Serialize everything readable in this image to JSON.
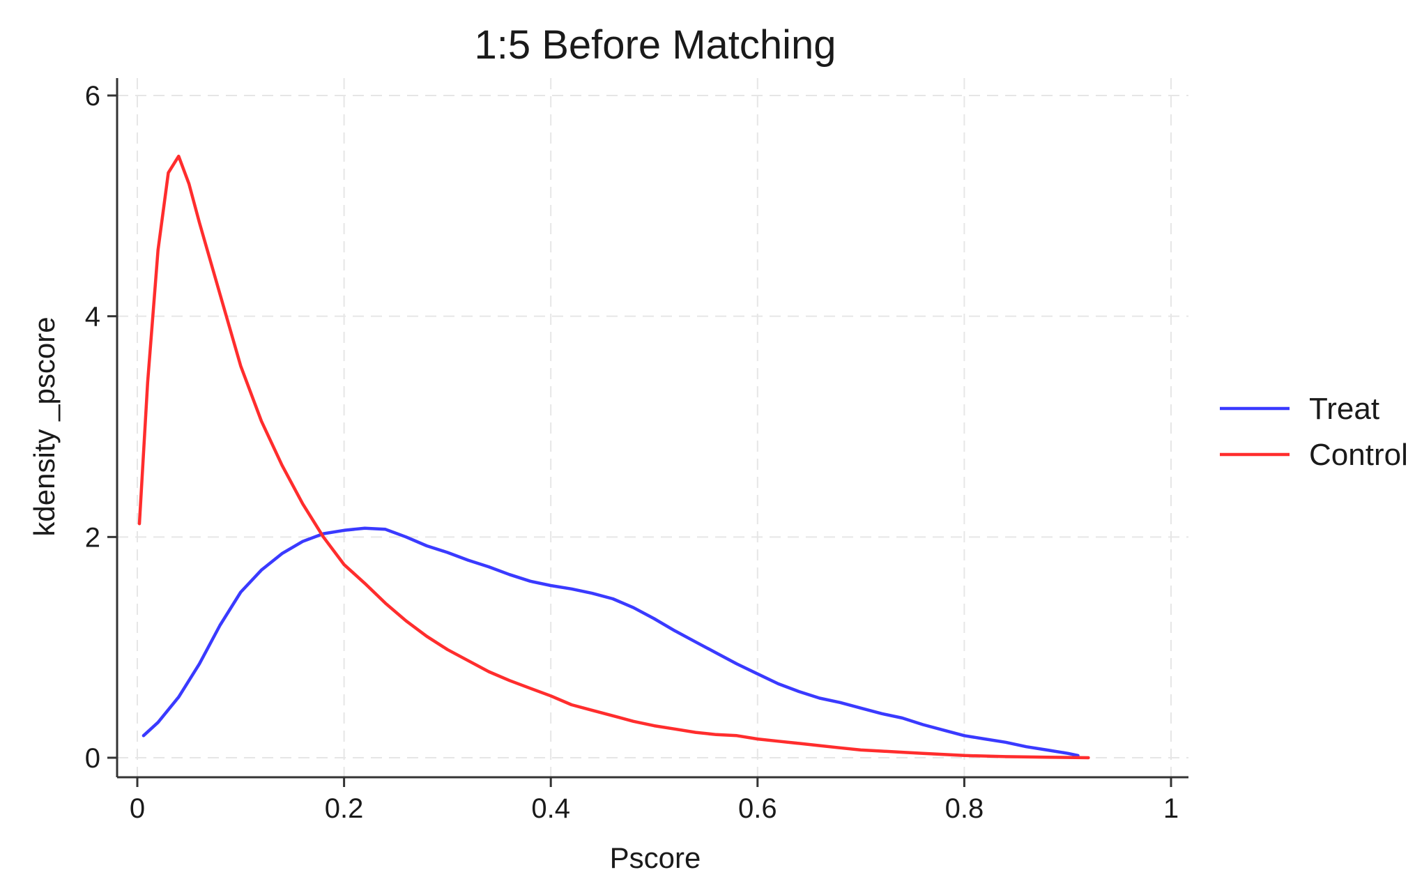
{
  "chart_data": {
    "type": "line",
    "title": "1:5 Before Matching",
    "xlabel": "Pscore",
    "ylabel": "kdensity _pscore",
    "xlim": [
      0,
      1
    ],
    "ylim": [
      0,
      6
    ],
    "x_ticks": [
      0,
      0.2,
      0.4,
      0.6,
      0.8,
      1
    ],
    "x_tick_labels": [
      "0",
      "0.2",
      "0.4",
      "0.6",
      "0.8",
      "1"
    ],
    "y_ticks": [
      0,
      2,
      4,
      6
    ],
    "y_tick_labels": [
      "0",
      "2",
      "4",
      "6"
    ],
    "grid": true,
    "legend_position": "right",
    "series": [
      {
        "name": "Treat",
        "color": "#3a3aff",
        "x": [
          0.006,
          0.02,
          0.04,
          0.06,
          0.08,
          0.1,
          0.12,
          0.14,
          0.16,
          0.18,
          0.2,
          0.22,
          0.24,
          0.26,
          0.28,
          0.3,
          0.32,
          0.34,
          0.36,
          0.38,
          0.4,
          0.42,
          0.44,
          0.46,
          0.48,
          0.5,
          0.52,
          0.54,
          0.56,
          0.58,
          0.6,
          0.62,
          0.64,
          0.66,
          0.68,
          0.7,
          0.72,
          0.74,
          0.76,
          0.78,
          0.8,
          0.82,
          0.84,
          0.86,
          0.88,
          0.9,
          0.91
        ],
        "y": [
          0.2,
          0.32,
          0.55,
          0.85,
          1.2,
          1.5,
          1.7,
          1.85,
          1.96,
          2.03,
          2.06,
          2.08,
          2.07,
          2.0,
          1.92,
          1.86,
          1.79,
          1.73,
          1.66,
          1.6,
          1.56,
          1.53,
          1.49,
          1.44,
          1.36,
          1.26,
          1.15,
          1.05,
          0.95,
          0.85,
          0.76,
          0.67,
          0.6,
          0.54,
          0.5,
          0.45,
          0.4,
          0.36,
          0.3,
          0.25,
          0.2,
          0.17,
          0.14,
          0.1,
          0.07,
          0.04,
          0.02
        ]
      },
      {
        "name": "Control",
        "color": "#ff2d2d",
        "x": [
          0.002,
          0.01,
          0.02,
          0.03,
          0.04,
          0.05,
          0.06,
          0.08,
          0.1,
          0.12,
          0.14,
          0.16,
          0.18,
          0.2,
          0.22,
          0.24,
          0.26,
          0.28,
          0.3,
          0.32,
          0.34,
          0.36,
          0.38,
          0.4,
          0.42,
          0.44,
          0.46,
          0.48,
          0.5,
          0.52,
          0.54,
          0.56,
          0.58,
          0.6,
          0.62,
          0.64,
          0.66,
          0.68,
          0.7,
          0.72,
          0.74,
          0.76,
          0.78,
          0.8,
          0.84,
          0.88,
          0.92
        ],
        "y": [
          2.12,
          3.4,
          4.6,
          5.3,
          5.45,
          5.2,
          4.85,
          4.2,
          3.55,
          3.05,
          2.65,
          2.3,
          2.0,
          1.75,
          1.58,
          1.4,
          1.24,
          1.1,
          0.98,
          0.88,
          0.78,
          0.7,
          0.63,
          0.56,
          0.48,
          0.43,
          0.38,
          0.33,
          0.29,
          0.26,
          0.23,
          0.21,
          0.2,
          0.17,
          0.15,
          0.13,
          0.11,
          0.09,
          0.07,
          0.06,
          0.05,
          0.04,
          0.03,
          0.02,
          0.01,
          0.005,
          0.0
        ]
      }
    ]
  }
}
